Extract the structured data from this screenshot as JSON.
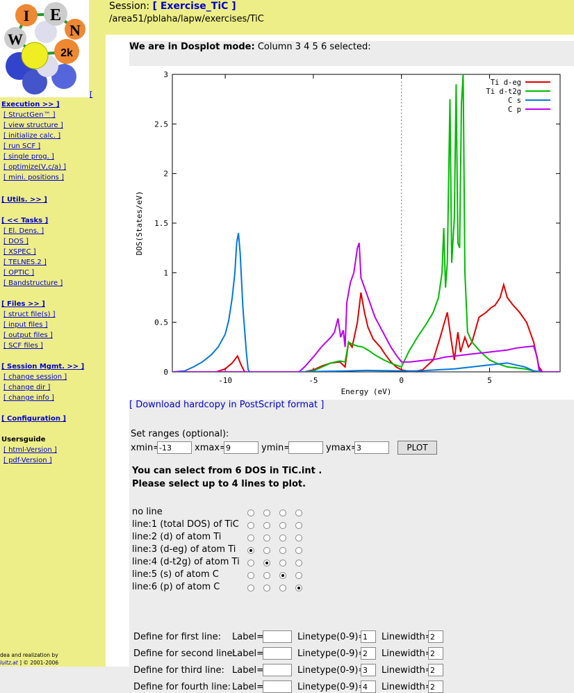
{
  "logo": {
    "letters": [
      "I",
      "E",
      "W",
      "N",
      "2k"
    ],
    "bracket": "["
  },
  "sidebar": {
    "execution": {
      "label": "Execution >> ]",
      "items": [
        "[ StructGen™ ]",
        "[ view structure ]",
        "[ initialize calc. ]",
        "[ run SCF ]",
        "[ single prog. ]",
        "[ optimize(V,c/a) ]",
        "[ mini. positions ]"
      ]
    },
    "utils": {
      "label": "[ Utils. >> ]"
    },
    "tasks": {
      "label": "[ << Tasks ]",
      "items": [
        "[ El. Dens. ]",
        "[ DOS ]",
        "[ XSPEC ]",
        "[ TELNES.2 ]",
        "[ OPTIC ]",
        "[ Bandstructure ]"
      ]
    },
    "files": {
      "label": "[ Files >> ]",
      "items": [
        "[ struct file(s) ]",
        "[ input files ]",
        "[ output files ]",
        "[ SCF files ]"
      ]
    },
    "session": {
      "label": "[ Session Mgmt. >> ]",
      "items": [
        "[ change session ]",
        "[ change dir ]",
        "[ change info ]"
      ]
    },
    "configuration": {
      "label": "[ Configuration ]"
    },
    "usersguide": {
      "label": "Usersguide",
      "items": [
        "[ html-Version ]",
        "[ pdf-Version ]"
      ]
    },
    "footer": {
      "line1": "dea and realization by",
      "link": "luitz.at",
      "line2": "] © 2001-2006"
    }
  },
  "header": {
    "session_label": "Session:",
    "session_link": "[ Exercise_TiC ]",
    "path": "/area51/pblaha/lapw/exercises/TiC"
  },
  "mode": {
    "bold": "We are in Dosplot mode:",
    "text": "Column 3 4 5 6 selected:"
  },
  "chart_data": {
    "type": "line",
    "xlabel": "Energy (eV)",
    "ylabel": "DOS(States/eV)",
    "xlim": [
      -13,
      9
    ],
    "ylim": [
      0,
      3
    ],
    "xticks": [
      -10,
      -5,
      0,
      5
    ],
    "yticks": [
      0,
      0.5,
      1,
      1.5,
      2,
      2.5,
      3
    ],
    "ytick_labels": [
      "0",
      "0.5",
      "1",
      "1.5",
      "2",
      "2.5",
      "3"
    ],
    "legend_position": "top-right",
    "zero_line": 0,
    "series": [
      {
        "name": "Ti d-eg",
        "color": "#dd0000",
        "points": [
          [
            -13,
            0
          ],
          [
            -10.5,
            0
          ],
          [
            -10.0,
            0.03
          ],
          [
            -9.6,
            0.09
          ],
          [
            -9.3,
            0.16
          ],
          [
            -9.1,
            0.07
          ],
          [
            -8.9,
            0
          ],
          [
            -5.5,
            0
          ],
          [
            -5.0,
            0.02
          ],
          [
            -4.5,
            0.06
          ],
          [
            -4.0,
            0.09
          ],
          [
            -3.5,
            0.1
          ],
          [
            -3.2,
            0.05
          ],
          [
            -3.0,
            0.3
          ],
          [
            -2.8,
            0.25
          ],
          [
            -2.5,
            0.5
          ],
          [
            -2.3,
            0.8
          ],
          [
            -2.1,
            0.6
          ],
          [
            -1.9,
            0.45
          ],
          [
            -1.6,
            0.33
          ],
          [
            -1.2,
            0.25
          ],
          [
            -0.9,
            0.17
          ],
          [
            -0.6,
            0.1
          ],
          [
            -0.3,
            0.05
          ],
          [
            0,
            0.02
          ],
          [
            0.6,
            0.0
          ],
          [
            1.2,
            0.02
          ],
          [
            1.8,
            0.12
          ],
          [
            2.2,
            0.35
          ],
          [
            2.6,
            0.6
          ],
          [
            2.8,
            0.35
          ],
          [
            3.0,
            0.12
          ],
          [
            3.2,
            0.4
          ],
          [
            3.35,
            0.2
          ],
          [
            3.6,
            0.35
          ],
          [
            3.8,
            0.25
          ],
          [
            4.0,
            0.3
          ],
          [
            4.4,
            0.55
          ],
          [
            4.8,
            0.6
          ],
          [
            5.1,
            0.65
          ],
          [
            5.3,
            0.67
          ],
          [
            5.6,
            0.75
          ],
          [
            5.8,
            0.88
          ],
          [
            6.0,
            0.75
          ],
          [
            6.3,
            0.68
          ],
          [
            6.7,
            0.6
          ],
          [
            7.1,
            0.5
          ],
          [
            7.5,
            0.3
          ],
          [
            7.8,
            0.05
          ],
          [
            8.0,
            0
          ],
          [
            9,
            0
          ]
        ]
      },
      {
        "name": "Ti d-t2g",
        "color": "#00bb00",
        "points": [
          [
            -13,
            0
          ],
          [
            -10.5,
            0
          ],
          [
            -9.0,
            0
          ],
          [
            -5.5,
            0
          ],
          [
            -5.0,
            0.01
          ],
          [
            -4.5,
            0.05
          ],
          [
            -4.0,
            0.09
          ],
          [
            -3.5,
            0.11
          ],
          [
            -3.2,
            0.1
          ],
          [
            -3.0,
            0.3
          ],
          [
            -2.8,
            0.28
          ],
          [
            -2.5,
            0.26
          ],
          [
            -2.2,
            0.25
          ],
          [
            -1.9,
            0.22
          ],
          [
            -1.5,
            0.17
          ],
          [
            -1.0,
            0.12
          ],
          [
            -0.5,
            0.08
          ],
          [
            0,
            0.05
          ],
          [
            0.4,
            0.2
          ],
          [
            0.9,
            0.35
          ],
          [
            1.4,
            0.48
          ],
          [
            1.8,
            0.6
          ],
          [
            2.1,
            0.75
          ],
          [
            2.3,
            1.0
          ],
          [
            2.4,
            1.45
          ],
          [
            2.5,
            0.85
          ],
          [
            2.6,
            1.1
          ],
          [
            2.75,
            2.75
          ],
          [
            2.85,
            1.1
          ],
          [
            3.0,
            1.55
          ],
          [
            3.1,
            2.9
          ],
          [
            3.2,
            1.3
          ],
          [
            3.3,
            1.25
          ],
          [
            3.4,
            2.7
          ],
          [
            3.5,
            3.0
          ],
          [
            3.6,
            1.0
          ],
          [
            3.75,
            0.4
          ],
          [
            4.0,
            0.3
          ],
          [
            4.5,
            0.2
          ],
          [
            5.0,
            0.12
          ],
          [
            5.5,
            0.08
          ],
          [
            6.0,
            0.05
          ],
          [
            6.5,
            0.04
          ],
          [
            7.0,
            0.03
          ],
          [
            7.5,
            0.01
          ],
          [
            8.0,
            0
          ],
          [
            9,
            0
          ]
        ]
      },
      {
        "name": "C s",
        "color": "#0077dd",
        "points": [
          [
            -13,
            0
          ],
          [
            -12.3,
            0.01
          ],
          [
            -11.8,
            0.05
          ],
          [
            -11.3,
            0.1
          ],
          [
            -10.8,
            0.17
          ],
          [
            -10.4,
            0.25
          ],
          [
            -10.0,
            0.38
          ],
          [
            -9.8,
            0.52
          ],
          [
            -9.6,
            0.75
          ],
          [
            -9.45,
            1.0
          ],
          [
            -9.35,
            1.3
          ],
          [
            -9.25,
            1.4
          ],
          [
            -9.15,
            1.2
          ],
          [
            -9.0,
            0.65
          ],
          [
            -8.8,
            0.2
          ],
          [
            -8.7,
            0.02
          ],
          [
            -8.6,
            0
          ],
          [
            -5.5,
            0
          ],
          [
            -4.5,
            0.005
          ],
          [
            -3.0,
            0.01
          ],
          [
            -2.0,
            0.015
          ],
          [
            0,
            0.01
          ],
          [
            1.0,
            0.01
          ],
          [
            2.0,
            0.02
          ],
          [
            3.0,
            0.03
          ],
          [
            4.0,
            0.05
          ],
          [
            5.0,
            0.07
          ],
          [
            6.0,
            0.09
          ],
          [
            7.0,
            0.05
          ],
          [
            7.5,
            0.01
          ],
          [
            8.0,
            0
          ],
          [
            9,
            0
          ]
        ]
      },
      {
        "name": "C p",
        "color": "#bb00ee",
        "points": [
          [
            -13,
            0
          ],
          [
            -10.5,
            0
          ],
          [
            -5.8,
            0
          ],
          [
            -5.5,
            0.05
          ],
          [
            -5.0,
            0.15
          ],
          [
            -4.5,
            0.26
          ],
          [
            -4.0,
            0.35
          ],
          [
            -3.8,
            0.4
          ],
          [
            -3.6,
            0.54
          ],
          [
            -3.45,
            0.35
          ],
          [
            -3.3,
            0.42
          ],
          [
            -3.2,
            0.25
          ],
          [
            -3.1,
            0.7
          ],
          [
            -2.9,
            0.9
          ],
          [
            -2.7,
            1.0
          ],
          [
            -2.5,
            1.25
          ],
          [
            -2.4,
            1.3
          ],
          [
            -2.3,
            0.95
          ],
          [
            -2.1,
            0.85
          ],
          [
            -1.8,
            0.7
          ],
          [
            -1.5,
            0.55
          ],
          [
            -1.2,
            0.45
          ],
          [
            -0.9,
            0.35
          ],
          [
            -0.6,
            0.25
          ],
          [
            -0.3,
            0.17
          ],
          [
            0,
            0.1
          ],
          [
            0.5,
            0.1
          ],
          [
            1.0,
            0.11
          ],
          [
            1.5,
            0.12
          ],
          [
            2.0,
            0.13
          ],
          [
            2.5,
            0.15
          ],
          [
            3.0,
            0.16
          ],
          [
            3.5,
            0.17
          ],
          [
            4.0,
            0.18
          ],
          [
            4.5,
            0.19
          ],
          [
            5.0,
            0.2
          ],
          [
            5.5,
            0.21
          ],
          [
            6.0,
            0.22
          ],
          [
            6.5,
            0.24
          ],
          [
            7.0,
            0.25
          ],
          [
            7.5,
            0.26
          ],
          [
            7.7,
            0.15
          ],
          [
            7.8,
            0.02
          ],
          [
            8.0,
            0
          ],
          [
            9,
            0
          ]
        ]
      }
    ]
  },
  "download": "[ Download hardcopy in PostScript format ]",
  "ranges": {
    "title": "Set ranges (optional):",
    "xmin_label": "xmin=",
    "xmin": "-13",
    "xmax_label": "xmax=",
    "xmax": "9",
    "ymin_label": "ymin=",
    "ymin": "",
    "ymax_label": "ymax=",
    "ymax": "3",
    "plot_button": "PLOT"
  },
  "selection": {
    "line1": "You can select from 6 DOS in TiC.int .",
    "line2": "Please select up to 4 lines to plot."
  },
  "lines": [
    {
      "label": "no line",
      "selected": -1
    },
    {
      "label": "line:1 (total DOS) of TiC",
      "selected": -1
    },
    {
      "label": "line:2 (d) of atom Ti",
      "selected": -1
    },
    {
      "label": "line:3 (d-eg) of atom Ti",
      "selected": 0
    },
    {
      "label": "line:4 (d-t2g) of atom Ti",
      "selected": 1
    },
    {
      "label": "line:5 (s) of atom C",
      "selected": 2
    },
    {
      "label": "line:6 (p) of atom C",
      "selected": 3
    }
  ],
  "defines": [
    {
      "title": "Define for first line:",
      "label_text": "Label=",
      "label": "",
      "linetype_label": "Linetype(0-9)=",
      "linetype": "1",
      "linewidth_label": "Linewidth=",
      "linewidth": "2"
    },
    {
      "title": "Define for second line:",
      "label_text": "Label=",
      "label": "",
      "linetype_label": "Linetype(0-9)=",
      "linetype": "2",
      "linewidth_label": "Linewidth=",
      "linewidth": "2"
    },
    {
      "title": "Define for third line:",
      "label_text": "Label=",
      "label": "",
      "linetype_label": "Linetype(0-9)=",
      "linetype": "3",
      "linewidth_label": "Linewidth=",
      "linewidth": "2"
    },
    {
      "title": "Define for fourth line:",
      "label_text": "Label=",
      "label": "",
      "linetype_label": "Linetype(0-9)=",
      "linetype": "4",
      "linewidth_label": "Linewidth=",
      "linewidth": "2"
    }
  ]
}
